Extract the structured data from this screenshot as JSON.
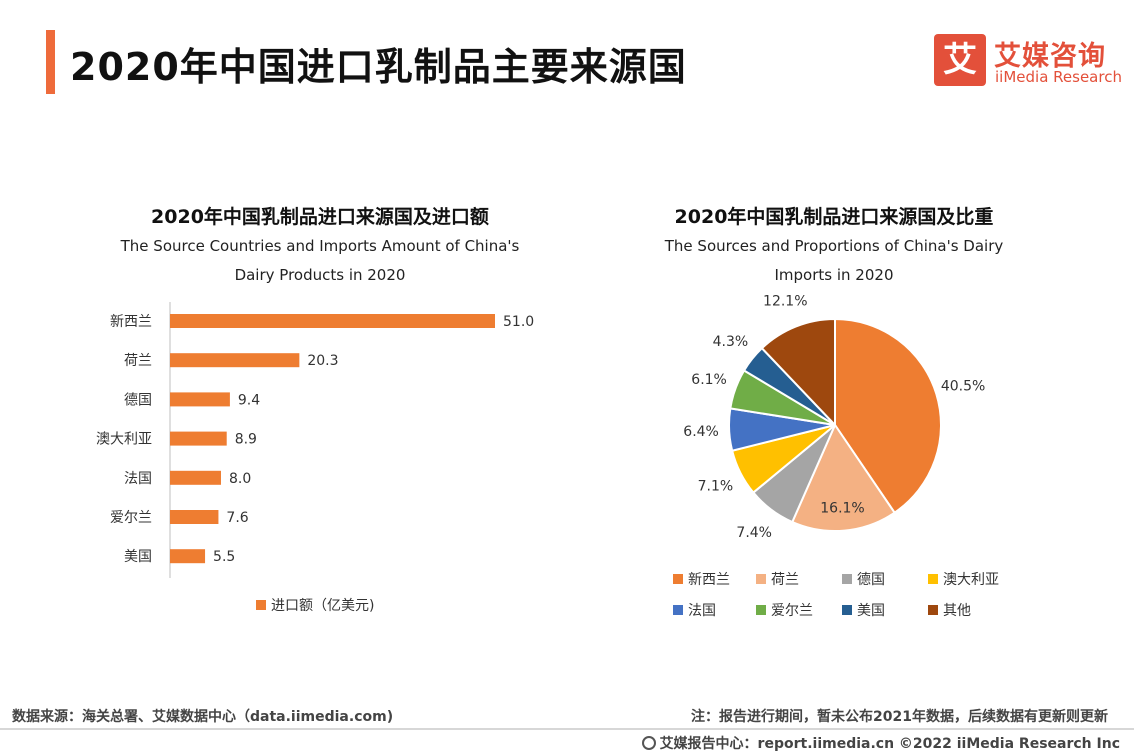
{
  "page": {
    "title": "2020年中国进口乳制品主要来源国"
  },
  "logo": {
    "mark": "艾",
    "cn": "艾媒咨询",
    "en": "iiMedia Research"
  },
  "footer": {
    "source": "数据来源：海关总署、艾媒数据中心（data.iimedia.com)",
    "note": "注：报告进行期间，暂未公布2021年数据，后续数据有更新则更新",
    "center": "艾媒报告中心：report.iimedia.cn   ©2022  iiMedia Research  Inc"
  },
  "chart_data": [
    {
      "type": "bar",
      "orientation": "horizontal",
      "title": "2020年中国乳制品进口来源国及进口额",
      "subtitle_lines": [
        "The Source Countries and Imports Amount of China's",
        "Dairy Products in 2020"
      ],
      "categories": [
        "新西兰",
        "荷兰",
        "德国",
        "澳大利亚",
        "法国",
        "爱尔兰",
        "美国"
      ],
      "series": [
        {
          "name": "进口额（亿美元)",
          "values": [
            51.0,
            20.3,
            9.4,
            8.9,
            8.0,
            7.6,
            5.5
          ],
          "value_labels": [
            "51.0",
            "20.3",
            "9.4",
            "8.9",
            "8.0",
            "7.6",
            "5.5"
          ]
        }
      ],
      "xlim": [
        0,
        51.0
      ],
      "grid": false,
      "legend_position": "bottom",
      "color": "#ee7d31"
    },
    {
      "type": "pie",
      "title": "2020年中国乳制品进口来源国及比重",
      "subtitle_lines": [
        "The Sources and Proportions of China's Dairy",
        "Imports in 2020"
      ],
      "categories": [
        "新西兰",
        "荷兰",
        "德国",
        "澳大利亚",
        "法国",
        "爱尔兰",
        "美国",
        "其他"
      ],
      "values": [
        40.5,
        16.1,
        7.4,
        7.1,
        6.4,
        6.1,
        4.3,
        12.1
      ],
      "value_labels": [
        "40.5%",
        "16.1%",
        "7.4%",
        "7.1%",
        "6.4%",
        "6.1%",
        "4.3%",
        "12.1%"
      ],
      "colors": [
        "#ee7d31",
        "#f4b183",
        "#a5a5a5",
        "#ffc000",
        "#4472c4",
        "#70ad47",
        "#255e91",
        "#9e480e"
      ],
      "legend_position": "bottom"
    }
  ]
}
